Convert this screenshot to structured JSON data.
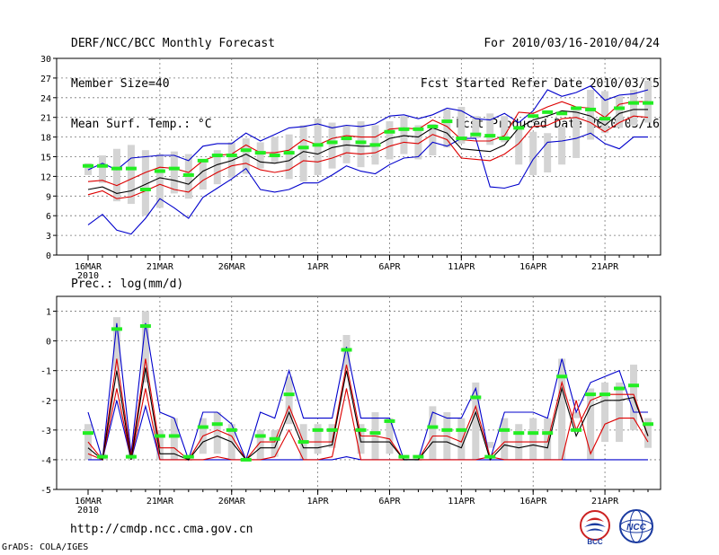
{
  "header": {
    "left": [
      "DERF/NCC/BCC Monthly Forecast",
      "Member Size=40",
      "Mean Surf. Temp.: °C"
    ],
    "right": [
      "For 2010/03/16-2010/04/24",
      "Fcst Started Refer Date 2010/03/15",
      "Fcst Produced Date 2010/03/16"
    ]
  },
  "footer": {
    "url": "http://cmdp.ncc.cma.gov.cn",
    "grads": "GrADS: COLA/IGES",
    "logo_left": "BCC",
    "logo_right": "NCC"
  },
  "colors": {
    "box": "#d4d4d4",
    "envelope": "#0000cc",
    "quantile": "#dd0000",
    "median": "#000000",
    "observed": "#22ee22",
    "grid": "#777777"
  },
  "chart_data": [
    {
      "type": "line",
      "title": "Mean Surf. Temp.: °C",
      "x_tick_labels": [
        "16MAR",
        "21MAR",
        "26MAR",
        "1APR",
        "6APR",
        "11APR",
        "16APR",
        "21APR"
      ],
      "x_tick_days": [
        0,
        5,
        10,
        16,
        21,
        26,
        31,
        36
      ],
      "x_year_label": "2010",
      "ylim": [
        0,
        30
      ],
      "yticks": [
        0,
        3,
        6,
        9,
        12,
        15,
        18,
        21,
        24,
        27,
        30
      ],
      "days": 40,
      "box_low": [
        12.2,
        11.0,
        8.2,
        7.8,
        6.0,
        7.2,
        9.4,
        8.6,
        10.0,
        10.8,
        11.8,
        12.4,
        13.2,
        14.0,
        11.6,
        11.2,
        12.2,
        13.2,
        14.0,
        13.4,
        13.8,
        14.6,
        15.4,
        14.6,
        15.2,
        16.4,
        17.0,
        17.8,
        16.8,
        17.2,
        13.8,
        12.2,
        12.6,
        13.8,
        14.8,
        17.6,
        18.6,
        19.4,
        19.8,
        20.2
      ],
      "box_high": [
        14.0,
        15.2,
        16.2,
        16.8,
        16.0,
        15.4,
        15.8,
        15.4,
        14.4,
        16.0,
        17.2,
        17.8,
        17.2,
        18.0,
        18.4,
        19.8,
        20.8,
        20.2,
        19.8,
        20.4,
        19.8,
        20.4,
        21.2,
        19.8,
        20.0,
        22.2,
        22.6,
        21.2,
        21.6,
        21.2,
        19.4,
        18.8,
        18.6,
        19.6,
        22.4,
        25.2,
        25.0,
        24.2,
        25.2,
        26.6
      ],
      "min": [
        4.6,
        6.2,
        3.8,
        3.2,
        5.6,
        8.6,
        7.2,
        5.6,
        8.8,
        10.2,
        11.6,
        13.2,
        10.0,
        9.6,
        10.0,
        11.0,
        11.0,
        12.2,
        13.6,
        12.8,
        12.4,
        13.8,
        14.8,
        15.0,
        17.2,
        16.6,
        17.8,
        17.8,
        10.4,
        10.2,
        10.8,
        14.6,
        17.2,
        17.4,
        17.8,
        18.6,
        17.0,
        16.2,
        18.0,
        18.0
      ],
      "max": [
        13.0,
        14.0,
        13.0,
        14.8,
        15.0,
        15.2,
        15.2,
        14.4,
        16.6,
        17.0,
        17.0,
        18.6,
        17.4,
        18.4,
        19.4,
        19.6,
        20.0,
        19.4,
        19.8,
        19.6,
        20.0,
        21.2,
        21.4,
        20.8,
        21.4,
        22.4,
        22.0,
        20.8,
        20.6,
        21.6,
        20.2,
        22.0,
        25.2,
        24.2,
        24.8,
        25.8,
        23.6,
        24.4,
        24.6,
        25.2
      ],
      "q_low": [
        9.2,
        9.8,
        8.6,
        8.9,
        9.8,
        10.8,
        10.0,
        9.6,
        11.4,
        12.6,
        13.6,
        14.0,
        13.0,
        12.6,
        13.0,
        14.4,
        14.2,
        14.8,
        15.6,
        15.4,
        15.6,
        16.6,
        17.2,
        17.0,
        18.4,
        17.6,
        14.8,
        14.6,
        14.4,
        15.4,
        17.0,
        19.6,
        19.8,
        20.8,
        21.0,
        20.2,
        18.8,
        20.2,
        21.2,
        21.0
      ],
      "q_high": [
        11.2,
        11.4,
        10.6,
        11.6,
        12.6,
        13.4,
        13.2,
        12.6,
        14.4,
        15.2,
        15.4,
        16.8,
        15.6,
        15.6,
        16.0,
        17.6,
        16.8,
        17.8,
        18.2,
        18.0,
        18.0,
        19.2,
        19.4,
        19.2,
        20.6,
        19.6,
        17.6,
        17.4,
        17.4,
        18.2,
        21.8,
        21.6,
        22.6,
        23.4,
        22.6,
        22.4,
        21.0,
        23.0,
        23.4,
        23.4
      ],
      "median": [
        10.0,
        10.4,
        9.4,
        9.8,
        10.8,
        11.8,
        11.4,
        10.8,
        12.8,
        13.8,
        14.4,
        15.4,
        14.2,
        14.0,
        14.4,
        15.8,
        15.4,
        16.4,
        16.8,
        16.6,
        16.6,
        17.8,
        18.2,
        18.0,
        19.4,
        18.6,
        16.2,
        16.0,
        15.8,
        16.8,
        19.4,
        20.6,
        21.2,
        22.0,
        21.8,
        21.2,
        19.8,
        21.6,
        22.2,
        22.2
      ],
      "observed": [
        13.6,
        13.6,
        13.2,
        13.2,
        10.0,
        12.8,
        13.2,
        12.2,
        14.4,
        15.2,
        15.2,
        16.0,
        15.6,
        15.2,
        15.6,
        16.4,
        16.8,
        17.2,
        17.8,
        17.2,
        16.8,
        18.8,
        19.2,
        19.2,
        19.6,
        20.4,
        17.8,
        18.4,
        18.2,
        17.8,
        19.4,
        21.2,
        21.8,
        21.6,
        22.4,
        22.2,
        20.8,
        22.4,
        23.2,
        23.2
      ]
    },
    {
      "type": "line",
      "title": "Prec.: log(mm/d)",
      "x_tick_labels": [
        "16MAR",
        "21MAR",
        "26MAR",
        "1APR",
        "6APR",
        "11APR",
        "16APR",
        "21APR"
      ],
      "x_tick_days": [
        0,
        5,
        10,
        16,
        21,
        26,
        31,
        36
      ],
      "x_year_label": "2010",
      "ylim": [
        -5,
        1.5
      ],
      "yticks": [
        -5,
        -4,
        -3,
        -2,
        -1,
        0,
        1
      ],
      "days": 40,
      "box_low": [
        -4.0,
        -4.0,
        -1.0,
        -4.0,
        -1.4,
        -4.0,
        -4.0,
        -4.0,
        -3.8,
        -3.8,
        -4.0,
        -4.0,
        -4.0,
        -3.9,
        -2.8,
        -4.0,
        -3.8,
        -3.6,
        -1.0,
        -3.8,
        -4.0,
        -3.8,
        -4.0,
        -4.0,
        -4.0,
        -4.0,
        -4.0,
        -4.0,
        -3.4,
        -4.0,
        -4.0,
        -4.0,
        -4.0,
        -4.0,
        -2.4,
        -4.0,
        -3.4,
        -3.4,
        -3.0,
        -3.6
      ],
      "box_high": [
        -2.8,
        -3.8,
        0.8,
        -3.8,
        1.0,
        -3.0,
        -2.6,
        -4.0,
        -2.6,
        -2.4,
        -2.8,
        -4.0,
        -3.0,
        -3.0,
        -1.2,
        -2.8,
        -2.8,
        -2.8,
        0.2,
        -2.8,
        -2.4,
        -2.6,
        -4.0,
        -4.0,
        -2.2,
        -2.4,
        -2.6,
        -1.4,
        -3.6,
        -2.6,
        -2.8,
        -2.6,
        -2.6,
        -0.6,
        -2.6,
        -1.6,
        -1.4,
        -1.4,
        -0.8,
        -2.6
      ],
      "min": [
        -4.0,
        -4.0,
        -2.0,
        -4.0,
        -2.2,
        -4.0,
        -4.0,
        -4.0,
        -4.0,
        -4.0,
        -4.0,
        -4.0,
        -4.0,
        -4.0,
        -4.0,
        -4.0,
        -4.0,
        -4.0,
        -3.9,
        -4.0,
        -4.0,
        -4.0,
        -4.0,
        -4.0,
        -4.0,
        -4.0,
        -4.0,
        -4.0,
        -4.0,
        -4.0,
        -4.0,
        -4.0,
        -4.0,
        -4.0,
        -4.0,
        -4.0,
        -4.0,
        -4.0,
        -4.0,
        -4.0
      ],
      "max": [
        -2.4,
        -4.0,
        0.6,
        -3.8,
        0.6,
        -2.4,
        -2.6,
        -4.0,
        -2.4,
        -2.4,
        -2.8,
        -4.0,
        -2.4,
        -2.6,
        -1.0,
        -2.6,
        -2.6,
        -2.6,
        -0.2,
        -2.6,
        -2.6,
        -2.6,
        -4.0,
        -4.0,
        -2.4,
        -2.6,
        -2.6,
        -1.6,
        -4.0,
        -2.4,
        -2.4,
        -2.4,
        -2.6,
        -0.6,
        -2.4,
        -1.4,
        -1.2,
        -1.0,
        -2.4,
        -2.4
      ],
      "q_low": [
        -3.8,
        -4.0,
        -1.6,
        -4.0,
        -1.6,
        -4.0,
        -4.0,
        -4.0,
        -4.0,
        -3.9,
        -4.0,
        -4.0,
        -4.0,
        -3.9,
        -3.0,
        -4.0,
        -4.0,
        -3.9,
        -1.6,
        -4.0,
        -4.0,
        -4.0,
        -4.0,
        -4.0,
        -4.0,
        -4.0,
        -4.0,
        -4.0,
        -3.9,
        -4.0,
        -4.0,
        -4.0,
        -4.0,
        -4.0,
        -2.0,
        -3.8,
        -2.8,
        -2.6,
        -2.6,
        -3.4
      ],
      "q_high": [
        -3.4,
        -4.0,
        -0.6,
        -3.9,
        -0.6,
        -3.6,
        -3.6,
        -4.0,
        -3.2,
        -3.0,
        -3.2,
        -4.0,
        -3.4,
        -3.4,
        -2.2,
        -3.4,
        -3.4,
        -3.4,
        -0.8,
        -3.2,
        -3.2,
        -3.3,
        -4.0,
        -4.0,
        -3.2,
        -3.2,
        -3.4,
        -2.2,
        -3.9,
        -3.4,
        -3.4,
        -3.4,
        -3.4,
        -1.4,
        -3.0,
        -2.0,
        -1.8,
        -1.8,
        -1.8,
        -3.2
      ],
      "median": [
        -3.6,
        -4.0,
        -1.0,
        -4.0,
        -0.9,
        -3.8,
        -3.8,
        -4.0,
        -3.4,
        -3.2,
        -3.4,
        -4.0,
        -3.6,
        -3.6,
        -2.4,
        -3.6,
        -3.6,
        -3.5,
        -1.0,
        -3.4,
        -3.4,
        -3.4,
        -4.0,
        -4.0,
        -3.4,
        -3.4,
        -3.6,
        -2.4,
        -4.0,
        -3.5,
        -3.6,
        -3.5,
        -3.6,
        -1.6,
        -3.2,
        -2.2,
        -2.0,
        -2.0,
        -1.9,
        -3.2
      ],
      "observed": [
        -3.1,
        -3.9,
        0.4,
        -3.9,
        0.5,
        -3.2,
        -3.2,
        -3.9,
        -2.9,
        -2.8,
        -3.0,
        -4.0,
        -3.2,
        -3.3,
        -1.8,
        -3.4,
        -3.0,
        -3.0,
        -0.3,
        -3.0,
        -3.1,
        -2.7,
        -3.9,
        -3.9,
        -2.9,
        -3.0,
        -3.0,
        -1.9,
        -3.9,
        -3.0,
        -3.1,
        -3.1,
        -3.1,
        -1.2,
        -3.0,
        -1.8,
        -1.8,
        -1.6,
        -1.5,
        -2.8
      ]
    }
  ]
}
